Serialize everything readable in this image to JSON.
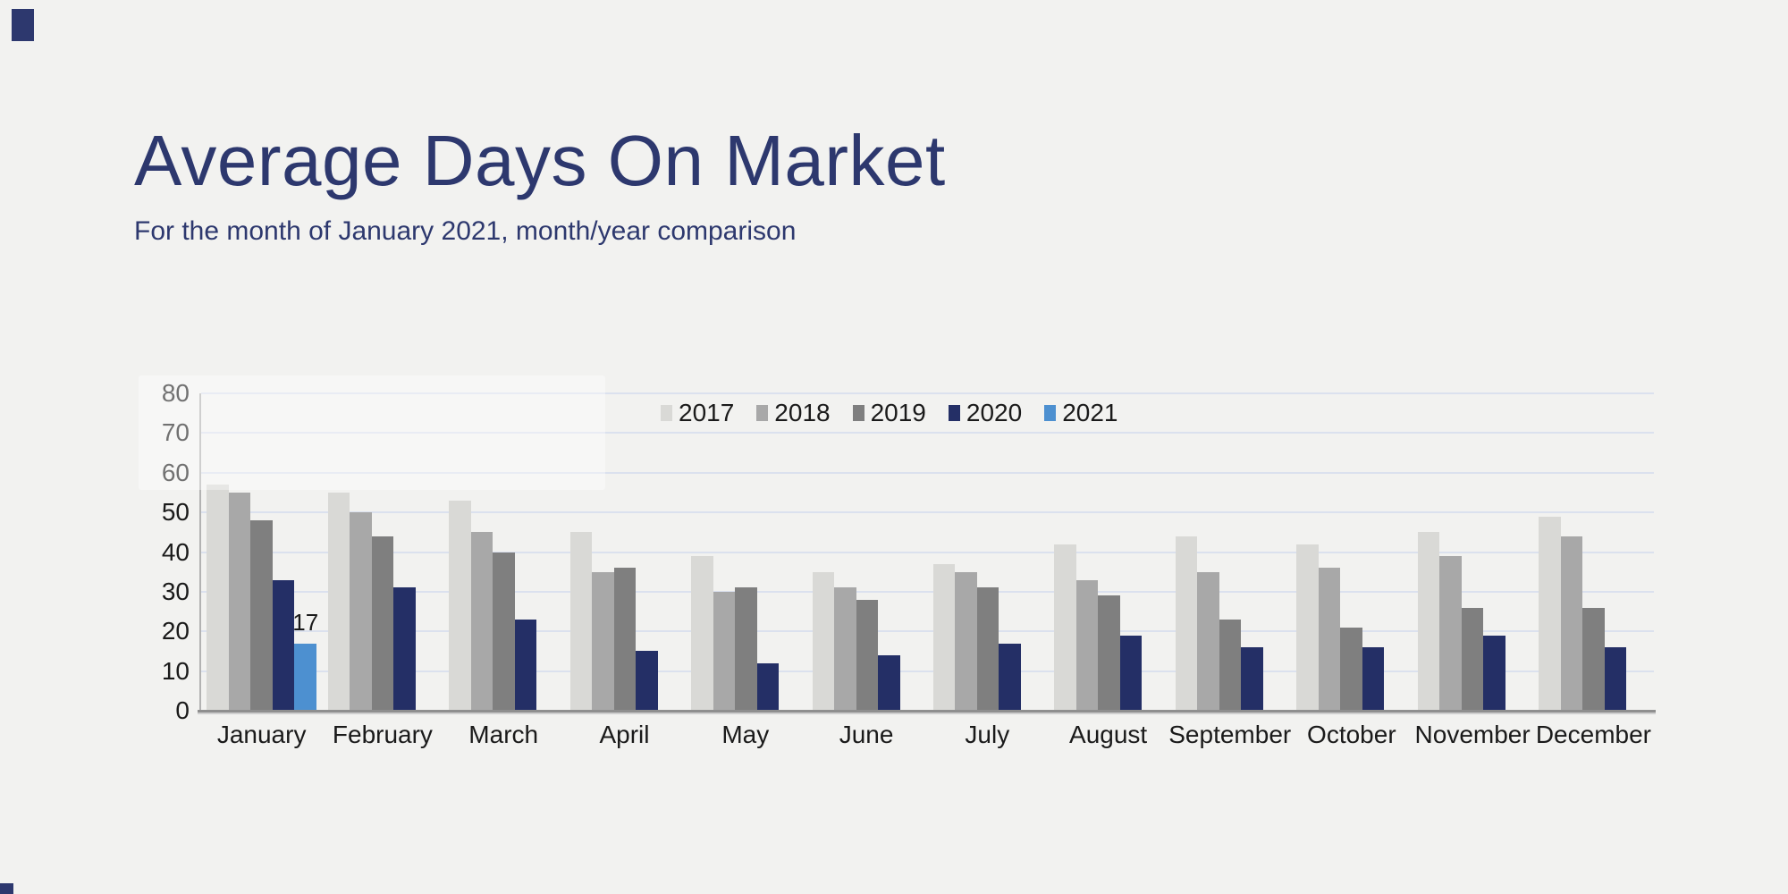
{
  "chart_data": {
    "type": "bar",
    "title": "Average Days On Market",
    "subtitle": "For the month of January 2021, month/year comparison",
    "categories": [
      "January",
      "February",
      "March",
      "April",
      "May",
      "June",
      "July",
      "August",
      "September",
      "October",
      "November",
      "December"
    ],
    "series": [
      {
        "name": "2017",
        "color": "#d9d9d6",
        "values": [
          57,
          55,
          53,
          45,
          39,
          35,
          37,
          42,
          44,
          42,
          45,
          49
        ]
      },
      {
        "name": "2018",
        "color": "#a8a8a8",
        "values": [
          55,
          50,
          45,
          35,
          30,
          31,
          35,
          33,
          35,
          36,
          39,
          44
        ]
      },
      {
        "name": "2019",
        "color": "#7f7f7f",
        "values": [
          48,
          44,
          40,
          36,
          31,
          28,
          31,
          29,
          23,
          21,
          26,
          26
        ]
      },
      {
        "name": "2020",
        "color": "#242f66",
        "values": [
          33,
          31,
          23,
          15,
          12,
          14,
          17,
          19,
          16,
          16,
          19,
          16
        ]
      },
      {
        "name": "2021",
        "color": "#4d90d0",
        "values": [
          17,
          null,
          null,
          null,
          null,
          null,
          null,
          null,
          null,
          null,
          null,
          null
        ]
      }
    ],
    "ylim": [
      0,
      80
    ],
    "ytick_interval": 10,
    "yticks": [
      "80",
      "70",
      "60",
      "50",
      "40",
      "30",
      "20",
      "10",
      "0"
    ],
    "grid": true,
    "legend_position": "top-center",
    "data_labels": [
      {
        "series": "2021",
        "category": "January",
        "text": "17"
      }
    ]
  },
  "style": {
    "background": "#f2f2f0",
    "title_color": "#2d386e",
    "gridline_color": "#dbe1ee",
    "axis_color": "#8f8f8f",
    "label_color": "#1a1a1a"
  }
}
